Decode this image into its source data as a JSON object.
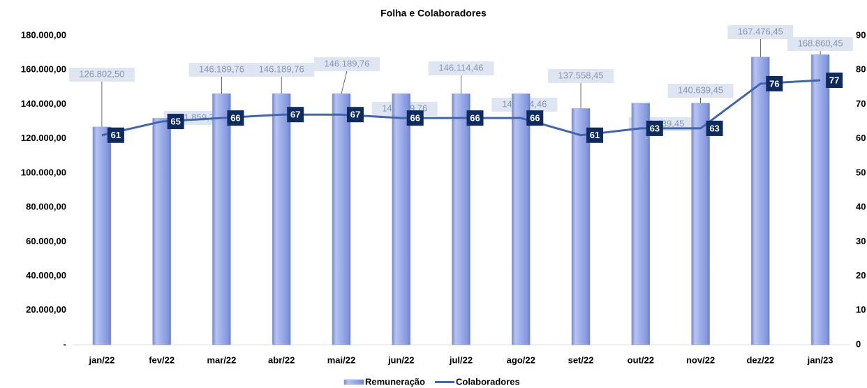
{
  "chart_data": {
    "type": "combo",
    "title": "Folha e Colaboradores",
    "categories": [
      "jan/22",
      "fev/22",
      "mar/22",
      "abr/22",
      "mai/22",
      "jun/22",
      "jul/22",
      "ago/22",
      "set/22",
      "out/22",
      "nov/22",
      "dez/22",
      "jan/23"
    ],
    "series": [
      {
        "name": "Remuneração",
        "type": "bar",
        "color": "#8c9fe0",
        "values": [
          126802.5,
          131859.79,
          146189.76,
          146189.76,
          146189.76,
          146189.76,
          146114.46,
          146114.46,
          137558.45,
          140639.45,
          140639.45,
          167476.45,
          168860.45
        ],
        "value_labels": [
          "126.802,50",
          "131.859,79",
          "146.189,76",
          "146.189,76",
          "146.189,76",
          "146.189,76",
          "146.114,46",
          "146.114,46",
          "137.558,45",
          "140.639,45",
          "140.639,45",
          "167.476,45",
          "168.860,45"
        ]
      },
      {
        "name": "Colaboradores",
        "type": "line",
        "axis": "y2",
        "color": "#4266ad",
        "values": [
          61,
          65,
          66,
          67,
          67,
          66,
          66,
          66,
          61,
          63,
          63,
          76,
          77
        ]
      }
    ],
    "ylim": [
      0,
      180000
    ],
    "yticks": [
      {
        "value": 0,
        "label": "-"
      },
      {
        "value": 20000,
        "label": "20.000,00"
      },
      {
        "value": 40000,
        "label": "40.000,00"
      },
      {
        "value": 60000,
        "label": "60.000,00"
      },
      {
        "value": 80000,
        "label": "80.000,00"
      },
      {
        "value": 100000,
        "label": "100.000,00"
      },
      {
        "value": 120000,
        "label": "120.000,00"
      },
      {
        "value": 140000,
        "label": "140.000,00"
      },
      {
        "value": 160000,
        "label": "160.000,00"
      },
      {
        "value": 180000,
        "label": "180.000,00"
      }
    ],
    "y2lim": [
      0,
      90
    ],
    "y2ticks": [
      0,
      10,
      20,
      30,
      40,
      50,
      60,
      70,
      80,
      90
    ],
    "legend": "bottom",
    "label_color": "#0d2b5e"
  }
}
